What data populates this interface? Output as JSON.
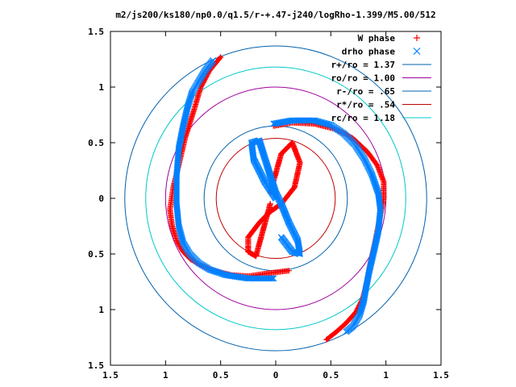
{
  "chart_data": {
    "type": "scatter",
    "title": "m2/js200/ks180/np0.0/q1.5/r-+.47-j240/logRho-1.399/M5.00/512",
    "xlabel": "",
    "ylabel": "",
    "xlim": [
      -1.5,
      1.5
    ],
    "ylim": [
      -1.5,
      1.5
    ],
    "x_ticks": [
      "1.5",
      "1",
      "0.5",
      "0",
      "0.5",
      "1",
      "1.5"
    ],
    "y_ticks": [
      "1.5",
      "1",
      "0.5",
      "0",
      "0.5",
      "1",
      "1.5"
    ],
    "grid": false,
    "legend_position": "top-right",
    "series": [
      {
        "name": "W phase",
        "marker": "plus",
        "color": "#ff0000",
        "arms": [
          {
            "x": [
              -0.05,
              0.05,
              0.15,
              0.22,
              0.17,
              0.05,
              -0.05,
              -0.15,
              -0.25,
              -0.25,
              -0.18,
              -0.05
            ],
            "y": [
              0.05,
              0.4,
              0.5,
              0.32,
              0.1,
              -0.05,
              -0.12,
              -0.22,
              -0.35,
              -0.48,
              -0.52,
              -0.05
            ]
          },
          {
            "x": [
              -0.05,
              0.05,
              0.15,
              0.22,
              0.17,
              0.05,
              -0.05,
              -0.15,
              -0.25,
              -0.25,
              -0.18,
              -0.05
            ],
            "y": [
              0.05,
              0.4,
              0.5,
              0.32,
              0.1,
              -0.05,
              -0.12,
              -0.22,
              -0.35,
              -0.48,
              -0.52,
              -0.05
            ]
          },
          {
            "x": [
              0.12,
              -0.12,
              -0.25,
              -0.4,
              -0.56,
              -0.68,
              -0.77,
              -0.84,
              -0.9,
              -0.94,
              -0.96,
              -0.93,
              -0.88,
              -0.82,
              -0.74,
              -0.68,
              -0.6,
              -0.5
            ],
            "y": [
              -0.65,
              -0.68,
              -0.7,
              -0.69,
              -0.65,
              -0.6,
              -0.55,
              -0.48,
              -0.38,
              -0.25,
              -0.1,
              0.1,
              0.3,
              0.55,
              0.8,
              1.0,
              1.15,
              1.27
            ]
          },
          {
            "x": [
              -0.02,
              0.15,
              0.35,
              0.55,
              0.7,
              0.83,
              0.92,
              0.98,
              0.98,
              0.94,
              0.9,
              0.86,
              0.83,
              0.79,
              0.73,
              0.64,
              0.55,
              0.46
            ],
            "y": [
              0.65,
              0.68,
              0.67,
              0.62,
              0.54,
              0.42,
              0.3,
              0.15,
              0.0,
              -0.2,
              -0.4,
              -0.58,
              -0.75,
              -0.9,
              -1.02,
              -1.12,
              -1.2,
              -1.27
            ]
          }
        ]
      },
      {
        "name": "drho phase",
        "marker": "x",
        "color": "#0080ff",
        "arms": [
          {
            "x": [
              0.0,
              -0.1,
              -0.2,
              -0.22,
              -0.15,
              0.0,
              0.05,
              0.12,
              0.2,
              0.22,
              0.15,
              0.05
            ],
            "y": [
              0.0,
              0.15,
              0.35,
              0.5,
              0.52,
              0.05,
              -0.05,
              -0.22,
              -0.38,
              -0.5,
              -0.48,
              -0.35
            ]
          },
          {
            "x": [
              0.0,
              -0.1,
              -0.2,
              -0.22,
              -0.15,
              0.0,
              0.05,
              0.12,
              0.2,
              0.22,
              0.15,
              0.05
            ],
            "y": [
              0.0,
              0.15,
              0.35,
              0.5,
              0.52,
              0.05,
              -0.05,
              -0.22,
              -0.38,
              -0.5,
              -0.48,
              -0.35
            ]
          },
          {
            "x": [
              -0.02,
              -0.25,
              -0.45,
              -0.6,
              -0.7,
              -0.78,
              -0.84,
              -0.88,
              -0.9,
              -0.9,
              -0.88,
              -0.84,
              -0.8,
              -0.76,
              -0.7,
              -0.64,
              -0.57
            ],
            "y": [
              -0.72,
              -0.72,
              -0.69,
              -0.64,
              -0.58,
              -0.5,
              -0.4,
              -0.25,
              -0.05,
              0.2,
              0.45,
              0.65,
              0.82,
              0.95,
              1.05,
              1.15,
              1.24
            ]
          },
          {
            "x": [
              -0.02,
              0.15,
              0.35,
              0.5,
              0.62,
              0.72,
              0.8,
              0.87,
              0.93,
              0.95,
              0.93,
              0.89,
              0.85,
              0.82,
              0.8,
              0.76,
              0.7,
              0.64
            ],
            "y": [
              0.67,
              0.7,
              0.7,
              0.66,
              0.58,
              0.48,
              0.36,
              0.22,
              0.05,
              -0.1,
              -0.3,
              -0.48,
              -0.65,
              -0.8,
              -0.92,
              -1.05,
              -1.15,
              -1.2
            ]
          }
        ]
      },
      {
        "name": "r+/ro = 1.37",
        "type": "circle",
        "radius": 1.37,
        "color": "#0060ad"
      },
      {
        "name": "ro/ro = 1.00",
        "type": "circle",
        "radius": 1.0,
        "color": "#a000a0"
      },
      {
        "name": "r-/ro = .65",
        "type": "circle",
        "radius": 0.65,
        "color": "#0060ad"
      },
      {
        "name": "r*/ro = .54",
        "type": "circle",
        "radius": 0.54,
        "color": "#c00000"
      },
      {
        "name": "rc/ro = 1.18",
        "type": "circle",
        "radius": 1.18,
        "color": "#00c8c8"
      }
    ]
  }
}
